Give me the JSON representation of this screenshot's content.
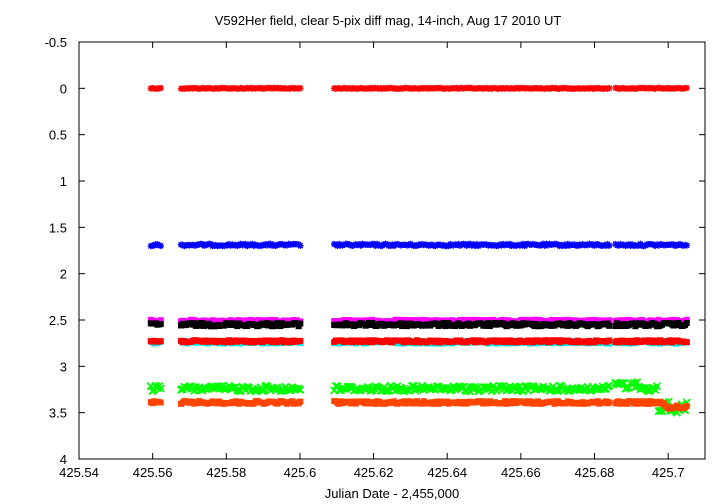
{
  "chart_data": {
    "type": "scatter",
    "title": "V592Her field, clear 5-pix diff mag, 14-inch, Aug 17 2010 UT",
    "xlabel": "Julian Date - 2,455,000",
    "ylabel": "",
    "xlim": [
      425.54,
      425.71
    ],
    "ylim": [
      4,
      -0.5
    ],
    "y_inverted": true,
    "grid": false,
    "legend": "none",
    "xticks": [
      "425.54",
      "425.56",
      "425.58",
      "425.6",
      "425.62",
      "425.64",
      "425.66",
      "425.68",
      "425.7"
    ],
    "xtick_values": [
      425.54,
      425.56,
      425.58,
      425.6,
      425.62,
      425.64,
      425.66,
      425.68,
      425.7
    ],
    "yticks": [
      "-0.5",
      "0",
      "0.5",
      "1",
      "1.5",
      "2",
      "2.5",
      "3",
      "3.5",
      "4"
    ],
    "ytick_values": [
      -0.5,
      0,
      0.5,
      1,
      1.5,
      2,
      2.5,
      3,
      3.5,
      4
    ],
    "time_segments": [
      [
        425.5595,
        425.5625
      ],
      [
        425.5677,
        425.6005
      ],
      [
        425.6093,
        425.6842
      ],
      [
        425.6857,
        425.7052
      ]
    ],
    "series": [
      {
        "color": "#ff0000",
        "marker": "star",
        "mean": 0.0,
        "scatter": 0.005
      },
      {
        "color": "#0000ff",
        "marker": "star",
        "mean": 1.69,
        "scatter": 0.012
      },
      {
        "color": "#ff00ff",
        "marker": "square",
        "mean": 2.51,
        "scatter": 0.012
      },
      {
        "color": "#000000",
        "marker": "square",
        "mean": 2.55,
        "scatter": 0.018
      },
      {
        "color": "#00e5e5",
        "marker": "square",
        "mean": 2.74,
        "scatter": 0.015
      },
      {
        "color": "#ff0000",
        "marker": "square",
        "mean": 2.73,
        "scatter": 0.012
      },
      {
        "color": "#00ff00",
        "marker": "cross",
        "mean": 3.24,
        "scatter": 0.03
      },
      {
        "color": "#ff4500",
        "marker": "square",
        "mean": 3.39,
        "scatter": 0.015
      }
    ]
  }
}
